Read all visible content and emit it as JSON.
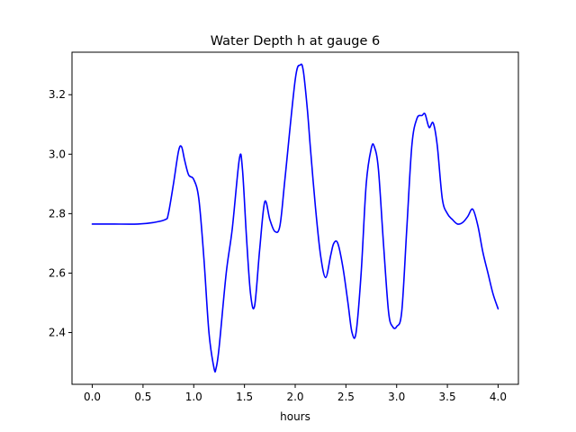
{
  "chart_data": {
    "type": "line",
    "title": "Water Depth h at gauge 6",
    "xlabel": "hours",
    "ylabel": "",
    "xlim": [
      -0.2,
      4.2
    ],
    "ylim": [
      2.226,
      3.343
    ],
    "xticks": [
      0.0,
      0.5,
      1.0,
      1.5,
      2.0,
      2.5,
      3.0,
      3.5,
      4.0
    ],
    "xtick_labels": [
      "0.0",
      "0.5",
      "1.0",
      "1.5",
      "2.0",
      "2.5",
      "3.0",
      "3.5",
      "4.0"
    ],
    "yticks": [
      2.4,
      2.6,
      2.8,
      3.0,
      3.2
    ],
    "ytick_labels": [
      "2.4",
      "2.6",
      "2.8",
      "3.0",
      "3.2"
    ],
    "grid": false,
    "line_color": "#0000ff",
    "series": [
      {
        "x": [
          0.0,
          0.2,
          0.45,
          0.6,
          0.72,
          0.75,
          0.8,
          0.85,
          0.88,
          0.91,
          0.95,
          1.0,
          1.05,
          1.1,
          1.15,
          1.2,
          1.22,
          1.25,
          1.32,
          1.38,
          1.45,
          1.48,
          1.52,
          1.56,
          1.6,
          1.65,
          1.7,
          1.75,
          1.8,
          1.85,
          1.9,
          2.0,
          2.05,
          2.08,
          2.12,
          2.15,
          2.2,
          2.25,
          2.3,
          2.35,
          2.38,
          2.42,
          2.47,
          2.52,
          2.56,
          2.6,
          2.65,
          2.7,
          2.75,
          2.78,
          2.82,
          2.87,
          2.92,
          2.96,
          3.0,
          3.05,
          3.1,
          3.15,
          3.2,
          3.25,
          3.28,
          3.32,
          3.36,
          3.4,
          3.45,
          3.5,
          3.55,
          3.6,
          3.65,
          3.7,
          3.75,
          3.8,
          3.85,
          3.9,
          3.95,
          4.0
        ],
        "y": [
          2.765,
          2.765,
          2.765,
          2.77,
          2.78,
          2.8,
          2.9,
          3.01,
          3.025,
          2.98,
          2.93,
          2.915,
          2.85,
          2.65,
          2.4,
          2.28,
          2.28,
          2.35,
          2.6,
          2.75,
          2.985,
          2.95,
          2.72,
          2.53,
          2.49,
          2.68,
          2.84,
          2.78,
          2.74,
          2.76,
          2.92,
          3.25,
          3.3,
          3.28,
          3.15,
          3.02,
          2.82,
          2.66,
          2.585,
          2.66,
          2.7,
          2.7,
          2.62,
          2.5,
          2.4,
          2.4,
          2.6,
          2.9,
          3.02,
          3.025,
          2.95,
          2.7,
          2.47,
          2.42,
          2.42,
          2.47,
          2.75,
          3.03,
          3.12,
          3.13,
          3.135,
          3.09,
          3.105,
          3.03,
          2.85,
          2.8,
          2.78,
          2.765,
          2.77,
          2.79,
          2.815,
          2.76,
          2.67,
          2.6,
          2.53,
          2.48
        ]
      }
    ]
  }
}
